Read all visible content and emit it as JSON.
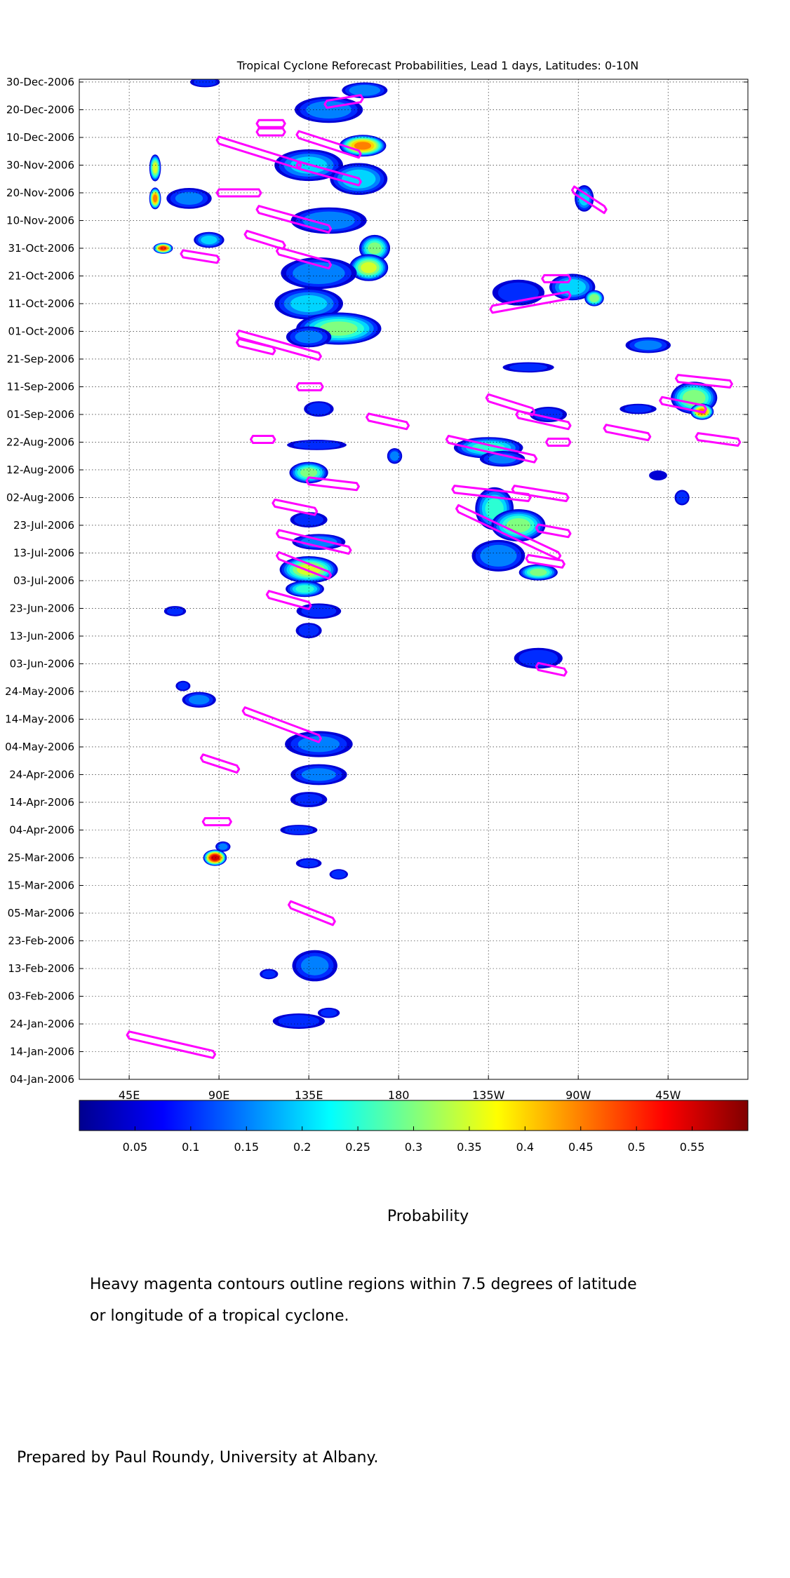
{
  "chart_data": {
    "type": "heatmap",
    "title": "Tropical Cyclone Reforecast Probabilities, Lead 1 days, Latitudes: 0-10N",
    "xlabel": "",
    "ylabel": "",
    "x_tick_labels": [
      "45E",
      "90E",
      "135E",
      "180",
      "135W",
      "90W",
      "45W"
    ],
    "x_tick_lon": [
      45,
      90,
      135,
      180,
      225,
      270,
      315
    ],
    "xlim_lon": [
      20,
      355
    ],
    "y_tick_labels": [
      "30-Dec-2006",
      "20-Dec-2006",
      "10-Dec-2006",
      "30-Nov-2006",
      "20-Nov-2006",
      "10-Nov-2006",
      "31-Oct-2006",
      "21-Oct-2006",
      "11-Oct-2006",
      "01-Oct-2006",
      "21-Sep-2006",
      "11-Sep-2006",
      "01-Sep-2006",
      "22-Aug-2006",
      "12-Aug-2006",
      "02-Aug-2006",
      "23-Jul-2006",
      "13-Jul-2006",
      "03-Jul-2006",
      "23-Jun-2006",
      "13-Jun-2006",
      "03-Jun-2006",
      "24-May-2006",
      "14-May-2006",
      "04-May-2006",
      "24-Apr-2006",
      "14-Apr-2006",
      "04-Apr-2006",
      "25-Mar-2006",
      "15-Mar-2006",
      "05-Mar-2006",
      "23-Feb-2006",
      "13-Feb-2006",
      "03-Feb-2006",
      "24-Jan-2006",
      "14-Jan-2006",
      "04-Jan-2006"
    ],
    "ylim": [
      "2006-01-04",
      "2006-12-31"
    ],
    "grid": true,
    "colorbar": {
      "label": "Probability",
      "ticks": [
        "0.05",
        "0.1",
        "0.15",
        "0.2",
        "0.25",
        "0.3",
        "0.35",
        "0.4",
        "0.45",
        "0.5",
        "0.55"
      ],
      "range": [
        0,
        0.6
      ],
      "colormap": "jet"
    },
    "colors": {
      "contour": "#ff00ff"
    },
    "probability_blobs": [
      {
        "lon": 83,
        "date": "2006-12-30",
        "dlon": 8,
        "ddays": 2,
        "max": 0.12
      },
      {
        "lon": 163,
        "date": "2006-12-27",
        "dlon": 12,
        "ddays": 3,
        "max": 0.18
      },
      {
        "lon": 145,
        "date": "2006-12-20",
        "dlon": 18,
        "ddays": 5,
        "max": 0.17
      },
      {
        "lon": 162,
        "date": "2006-12-07",
        "dlon": 12,
        "ddays": 4,
        "max": 0.45
      },
      {
        "lon": 135,
        "date": "2006-11-30",
        "dlon": 18,
        "ddays": 6,
        "max": 0.2
      },
      {
        "lon": 160,
        "date": "2006-11-25",
        "dlon": 15,
        "ddays": 6,
        "max": 0.22
      },
      {
        "lon": 58,
        "date": "2006-11-29",
        "dlon": 3,
        "ddays": 5,
        "max": 0.35
      },
      {
        "lon": 58,
        "date": "2006-11-18",
        "dlon": 3,
        "ddays": 4,
        "max": 0.45
      },
      {
        "lon": 75,
        "date": "2006-11-18",
        "dlon": 12,
        "ddays": 4,
        "max": 0.15
      },
      {
        "lon": 145,
        "date": "2006-11-10",
        "dlon": 20,
        "ddays": 5,
        "max": 0.18
      },
      {
        "lon": 62,
        "date": "2006-10-31",
        "dlon": 5,
        "ddays": 2,
        "max": 0.5
      },
      {
        "lon": 85,
        "date": "2006-11-03",
        "dlon": 8,
        "ddays": 3,
        "max": 0.2
      },
      {
        "lon": 168,
        "date": "2006-10-31",
        "dlon": 8,
        "ddays": 5,
        "max": 0.3
      },
      {
        "lon": 165,
        "date": "2006-10-24",
        "dlon": 10,
        "ddays": 5,
        "max": 0.35
      },
      {
        "lon": 140,
        "date": "2006-10-22",
        "dlon": 20,
        "ddays": 6,
        "max": 0.18
      },
      {
        "lon": 135,
        "date": "2006-10-11",
        "dlon": 18,
        "ddays": 6,
        "max": 0.2
      },
      {
        "lon": 150,
        "date": "2006-10-02",
        "dlon": 22,
        "ddays": 6,
        "max": 0.3
      },
      {
        "lon": 135,
        "date": "2006-09-29",
        "dlon": 12,
        "ddays": 4,
        "max": 0.15
      },
      {
        "lon": 267,
        "date": "2006-10-17",
        "dlon": 12,
        "ddays": 5,
        "max": 0.22
      },
      {
        "lon": 278,
        "date": "2006-10-13",
        "dlon": 5,
        "ddays": 3,
        "max": 0.32
      },
      {
        "lon": 240,
        "date": "2006-10-15",
        "dlon": 14,
        "ddays": 5,
        "max": 0.12
      },
      {
        "lon": 273,
        "date": "2006-11-18",
        "dlon": 5,
        "ddays": 5,
        "max": 0.2
      },
      {
        "lon": 305,
        "date": "2006-09-26",
        "dlon": 12,
        "ddays": 3,
        "max": 0.15
      },
      {
        "lon": 328,
        "date": "2006-09-07",
        "dlon": 12,
        "ddays": 6,
        "max": 0.32
      },
      {
        "lon": 332,
        "date": "2006-09-02",
        "dlon": 6,
        "ddays": 3,
        "max": 0.45
      },
      {
        "lon": 300,
        "date": "2006-09-03",
        "dlon": 10,
        "ddays": 2,
        "max": 0.1
      },
      {
        "lon": 255,
        "date": "2006-09-01",
        "dlon": 10,
        "ddays": 3,
        "max": 0.12
      },
      {
        "lon": 245,
        "date": "2006-09-18",
        "dlon": 14,
        "ddays": 2,
        "max": 0.1
      },
      {
        "lon": 140,
        "date": "2006-09-03",
        "dlon": 8,
        "ddays": 3,
        "max": 0.12
      },
      {
        "lon": 139,
        "date": "2006-08-21",
        "dlon": 16,
        "ddays": 2,
        "max": 0.12
      },
      {
        "lon": 135,
        "date": "2006-08-11",
        "dlon": 10,
        "ddays": 4,
        "max": 0.3
      },
      {
        "lon": 178,
        "date": "2006-08-17",
        "dlon": 4,
        "ddays": 3,
        "max": 0.15
      },
      {
        "lon": 225,
        "date": "2006-08-20",
        "dlon": 18,
        "ddays": 4,
        "max": 0.25
      },
      {
        "lon": 232,
        "date": "2006-08-16",
        "dlon": 12,
        "ddays": 3,
        "max": 0.15
      },
      {
        "lon": 228,
        "date": "2006-07-29",
        "dlon": 10,
        "ddays": 8,
        "max": 0.25
      },
      {
        "lon": 240,
        "date": "2006-07-23",
        "dlon": 14,
        "ddays": 6,
        "max": 0.3
      },
      {
        "lon": 230,
        "date": "2006-07-12",
        "dlon": 14,
        "ddays": 6,
        "max": 0.18
      },
      {
        "lon": 250,
        "date": "2006-07-06",
        "dlon": 10,
        "ddays": 3,
        "max": 0.3
      },
      {
        "lon": 322,
        "date": "2006-08-02",
        "dlon": 4,
        "ddays": 3,
        "max": 0.12
      },
      {
        "lon": 310,
        "date": "2006-08-10",
        "dlon": 5,
        "ddays": 2,
        "max": 0.08
      },
      {
        "lon": 135,
        "date": "2006-07-25",
        "dlon": 10,
        "ddays": 3,
        "max": 0.12
      },
      {
        "lon": 140,
        "date": "2006-07-17",
        "dlon": 14,
        "ddays": 3,
        "max": 0.18
      },
      {
        "lon": 135,
        "date": "2006-07-07",
        "dlon": 15,
        "ddays": 5,
        "max": 0.35
      },
      {
        "lon": 133,
        "date": "2006-06-30",
        "dlon": 10,
        "ddays": 3,
        "max": 0.25
      },
      {
        "lon": 140,
        "date": "2006-06-22",
        "dlon": 12,
        "ddays": 3,
        "max": 0.12
      },
      {
        "lon": 135,
        "date": "2006-06-15",
        "dlon": 7,
        "ddays": 3,
        "max": 0.12
      },
      {
        "lon": 68,
        "date": "2006-06-22",
        "dlon": 6,
        "ddays": 2,
        "max": 0.1
      },
      {
        "lon": 250,
        "date": "2006-06-05",
        "dlon": 13,
        "ddays": 4,
        "max": 0.13
      },
      {
        "lon": 80,
        "date": "2006-05-21",
        "dlon": 9,
        "ddays": 3,
        "max": 0.15
      },
      {
        "lon": 72,
        "date": "2006-05-26",
        "dlon": 4,
        "ddays": 2,
        "max": 0.1
      },
      {
        "lon": 140,
        "date": "2006-05-05",
        "dlon": 18,
        "ddays": 5,
        "max": 0.15
      },
      {
        "lon": 140,
        "date": "2006-04-24",
        "dlon": 15,
        "ddays": 4,
        "max": 0.15
      },
      {
        "lon": 135,
        "date": "2006-04-15",
        "dlon": 10,
        "ddays": 3,
        "max": 0.1
      },
      {
        "lon": 88,
        "date": "2006-03-25",
        "dlon": 6,
        "ddays": 3,
        "max": 0.55
      },
      {
        "lon": 92,
        "date": "2006-03-29",
        "dlon": 4,
        "ddays": 2,
        "max": 0.15
      },
      {
        "lon": 130,
        "date": "2006-04-04",
        "dlon": 10,
        "ddays": 2,
        "max": 0.12
      },
      {
        "lon": 150,
        "date": "2006-03-19",
        "dlon": 5,
        "ddays": 2,
        "max": 0.12
      },
      {
        "lon": 135,
        "date": "2006-03-23",
        "dlon": 7,
        "ddays": 2,
        "max": 0.1
      },
      {
        "lon": 138,
        "date": "2006-02-14",
        "dlon": 12,
        "ddays": 6,
        "max": 0.15
      },
      {
        "lon": 115,
        "date": "2006-02-11",
        "dlon": 5,
        "ddays": 2,
        "max": 0.1
      },
      {
        "lon": 130,
        "date": "2006-01-25",
        "dlon": 14,
        "ddays": 3,
        "max": 0.12
      },
      {
        "lon": 145,
        "date": "2006-01-28",
        "dlon": 6,
        "ddays": 2,
        "max": 0.1
      }
    ],
    "cyclone_contours": [
      {
        "lon0": 144,
        "lon1": 161,
        "d0": "2006-12-22",
        "d1": "2006-12-24"
      },
      {
        "lon0": 110,
        "lon1": 122,
        "d0": "2006-12-15",
        "d1": "2006-12-15"
      },
      {
        "lon0": 110,
        "lon1": 122,
        "d0": "2006-12-12",
        "d1": "2006-12-12"
      },
      {
        "lon0": 90,
        "lon1": 130,
        "d0": "2006-12-09",
        "d1": "2006-11-30"
      },
      {
        "lon0": 130,
        "lon1": 160,
        "d0": "2006-12-11",
        "d1": "2006-12-04"
      },
      {
        "lon0": 130,
        "lon1": 160,
        "d0": "2006-11-30",
        "d1": "2006-11-24"
      },
      {
        "lon0": 90,
        "lon1": 110,
        "d0": "2006-11-20",
        "d1": "2006-11-20"
      },
      {
        "lon0": 110,
        "lon1": 145,
        "d0": "2006-11-14",
        "d1": "2006-11-07"
      },
      {
        "lon0": 104,
        "lon1": 122,
        "d0": "2006-11-05",
        "d1": "2006-11-01"
      },
      {
        "lon0": 120,
        "lon1": 145,
        "d0": "2006-10-30",
        "d1": "2006-10-25"
      },
      {
        "lon0": 72,
        "lon1": 89,
        "d0": "2006-10-29",
        "d1": "2006-10-27"
      },
      {
        "lon0": 227,
        "lon1": 265,
        "d0": "2006-10-09",
        "d1": "2006-10-14"
      },
      {
        "lon0": 253,
        "lon1": 265,
        "d0": "2006-10-20",
        "d1": "2006-10-20"
      },
      {
        "lon0": 268,
        "lon1": 283,
        "d0": "2006-11-21",
        "d1": "2006-11-14"
      },
      {
        "lon0": 100,
        "lon1": 140,
        "d0": "2006-09-30",
        "d1": "2006-09-22"
      },
      {
        "lon0": 100,
        "lon1": 117,
        "d0": "2006-09-27",
        "d1": "2006-09-24"
      },
      {
        "lon0": 130,
        "lon1": 141,
        "d0": "2006-09-11",
        "d1": "2006-09-11"
      },
      {
        "lon0": 225,
        "lon1": 247,
        "d0": "2006-09-07",
        "d1": "2006-09-02"
      },
      {
        "lon0": 240,
        "lon1": 265,
        "d0": "2006-09-01",
        "d1": "2006-08-28"
      },
      {
        "lon0": 320,
        "lon1": 346,
        "d0": "2006-09-14",
        "d1": "2006-09-12"
      },
      {
        "lon0": 312,
        "lon1": 333,
        "d0": "2006-09-06",
        "d1": "2006-09-03"
      },
      {
        "lon0": 284,
        "lon1": 305,
        "d0": "2006-08-27",
        "d1": "2006-08-24"
      },
      {
        "lon0": 330,
        "lon1": 350,
        "d0": "2006-08-24",
        "d1": "2006-08-22"
      },
      {
        "lon0": 165,
        "lon1": 184,
        "d0": "2006-08-31",
        "d1": "2006-08-28"
      },
      {
        "lon0": 205,
        "lon1": 248,
        "d0": "2006-08-23",
        "d1": "2006-08-16"
      },
      {
        "lon0": 255,
        "lon1": 265,
        "d0": "2006-08-22",
        "d1": "2006-08-22"
      },
      {
        "lon0": 107,
        "lon1": 117,
        "d0": "2006-08-23",
        "d1": "2006-08-23"
      },
      {
        "lon0": 135,
        "lon1": 159,
        "d0": "2006-08-08",
        "d1": "2006-08-06"
      },
      {
        "lon0": 208,
        "lon1": 245,
        "d0": "2006-08-05",
        "d1": "2006-08-02"
      },
      {
        "lon0": 238,
        "lon1": 264,
        "d0": "2006-08-05",
        "d1": "2006-08-02"
      },
      {
        "lon0": 118,
        "lon1": 138,
        "d0": "2006-07-31",
        "d1": "2006-07-28"
      },
      {
        "lon0": 210,
        "lon1": 260,
        "d0": "2006-07-29",
        "d1": "2006-07-12"
      },
      {
        "lon0": 250,
        "lon1": 265,
        "d0": "2006-07-22",
        "d1": "2006-07-20"
      },
      {
        "lon0": 120,
        "lon1": 155,
        "d0": "2006-07-20",
        "d1": "2006-07-14"
      },
      {
        "lon0": 120,
        "lon1": 145,
        "d0": "2006-07-12",
        "d1": "2006-07-05"
      },
      {
        "lon0": 245,
        "lon1": 262,
        "d0": "2006-07-11",
        "d1": "2006-07-09"
      },
      {
        "lon0": 115,
        "lon1": 135,
        "d0": "2006-06-28",
        "d1": "2006-06-24"
      },
      {
        "lon0": 250,
        "lon1": 263,
        "d0": "2006-06-02",
        "d1": "2006-05-31"
      },
      {
        "lon0": 103,
        "lon1": 140,
        "d0": "2006-05-17",
        "d1": "2006-05-07"
      },
      {
        "lon0": 82,
        "lon1": 99,
        "d0": "2006-04-30",
        "d1": "2006-04-26"
      },
      {
        "lon0": 83,
        "lon1": 95,
        "d0": "2006-04-07",
        "d1": "2006-04-07"
      },
      {
        "lon0": 126,
        "lon1": 147,
        "d0": "2006-03-08",
        "d1": "2006-03-02"
      },
      {
        "lon0": 45,
        "lon1": 87,
        "d0": "2006-01-20",
        "d1": "2006-01-13"
      }
    ]
  },
  "page": {
    "colorbar_label": "Probability",
    "caption_line1": "Heavy magenta contours outline regions within 7.5 degrees of latitude",
    "caption_line2": "or longitude of a tropical cyclone.",
    "prepared_by": "Prepared by Paul Roundy, University at Albany."
  }
}
